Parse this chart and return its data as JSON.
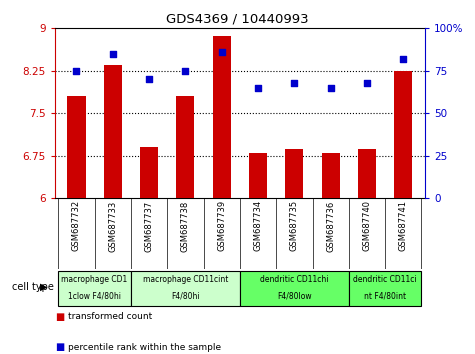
{
  "title": "GDS4369 / 10440993",
  "samples": [
    "GSM687732",
    "GSM687733",
    "GSM687737",
    "GSM687738",
    "GSM687739",
    "GSM687734",
    "GSM687735",
    "GSM687736",
    "GSM687740",
    "GSM687741"
  ],
  "bar_values": [
    7.8,
    8.35,
    6.9,
    7.8,
    8.87,
    6.8,
    6.87,
    6.8,
    6.87,
    8.25
  ],
  "dot_values": [
    75,
    85,
    70,
    75,
    86,
    65,
    68,
    65,
    68,
    82
  ],
  "ylim_left": [
    6,
    9
  ],
  "ylim_right": [
    0,
    100
  ],
  "yticks_left": [
    6,
    6.75,
    7.5,
    8.25,
    9
  ],
  "yticks_right": [
    0,
    25,
    50,
    75,
    100
  ],
  "bar_color": "#cc0000",
  "dot_color": "#0000cc",
  "bar_width": 0.5,
  "grid_lines": [
    6.75,
    7.5,
    8.25
  ],
  "cell_types": [
    {
      "label": "macrophage CD1\n1clow F4/80hi",
      "start": 0,
      "end": 2,
      "color": "#ccffcc"
    },
    {
      "label": "macrophage CD11cint\nF4/80hi",
      "start": 2,
      "end": 5,
      "color": "#ccffcc"
    },
    {
      "label": "dendritic CD11chi\nF4/80low",
      "start": 5,
      "end": 8,
      "color": "#66ff66"
    },
    {
      "label": "dendritic CD11ci\nnt F4/80int",
      "start": 8,
      "end": 10,
      "color": "#66ff66"
    }
  ],
  "legend_bar_label": "transformed count",
  "legend_dot_label": "percentile rank within the sample",
  "cell_type_label": "cell type",
  "background_color": "#ffffff",
  "plot_bg_color": "#ffffff",
  "tick_label_color_left": "#cc0000",
  "tick_label_color_right": "#0000cc",
  "xtick_bg_color": "#d0d0d0"
}
